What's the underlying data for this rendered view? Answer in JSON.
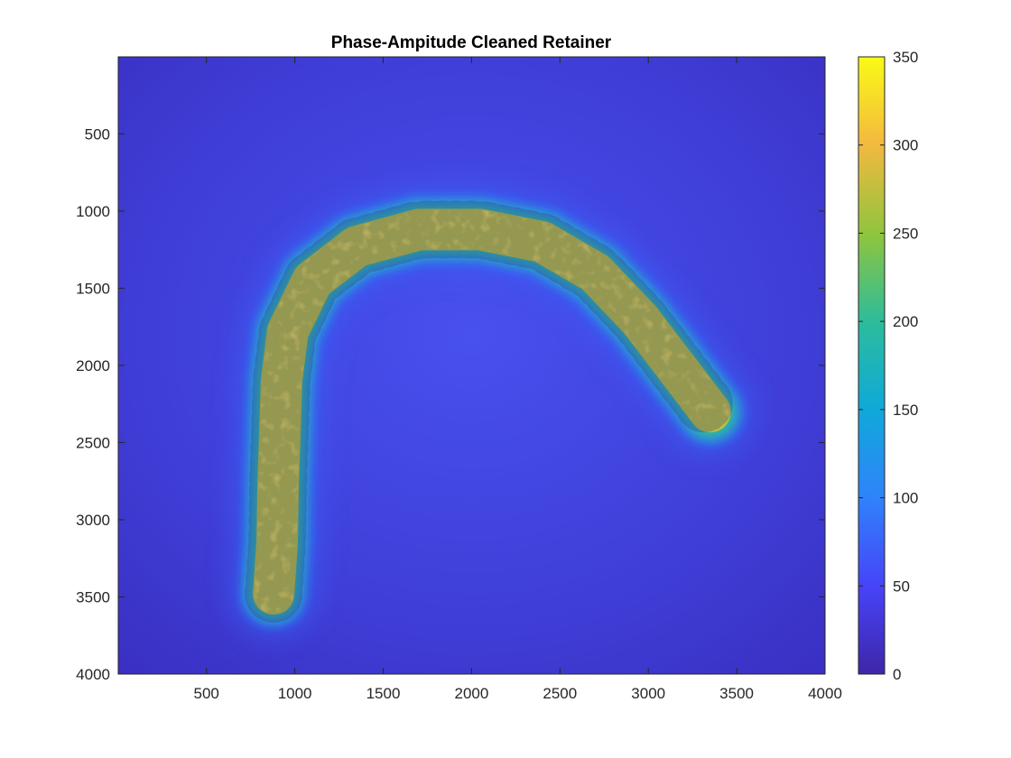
{
  "chart_data": {
    "type": "heatmap",
    "title": "Phase-Ampitude Cleaned Retainer",
    "xlabel": "",
    "ylabel": "",
    "xlim": [
      1,
      4000
    ],
    "ylim": [
      1,
      4000
    ],
    "y_reversed": true,
    "x_ticks": [
      "500",
      "1000",
      "1500",
      "2000",
      "2500",
      "3000",
      "3500",
      "4000"
    ],
    "x_tick_values": [
      500,
      1000,
      1500,
      2000,
      2500,
      3000,
      3500,
      4000
    ],
    "y_ticks": [
      "500",
      "1000",
      "1500",
      "2000",
      "2500",
      "3000",
      "3500",
      "4000"
    ],
    "y_tick_values": [
      500,
      1000,
      1500,
      2000,
      2500,
      3000,
      3500,
      4000
    ],
    "colorbar": {
      "range": [
        0,
        350
      ],
      "ticks": [
        "0",
        "50",
        "100",
        "150",
        "200",
        "250",
        "300",
        "350"
      ],
      "tick_values": [
        0,
        50,
        100,
        150,
        200,
        250,
        300,
        350
      ],
      "colormap": "parula"
    },
    "background_value": 30,
    "object_value": 270,
    "object_centerline": [
      [
        880,
        3480
      ],
      [
        900,
        3150
      ],
      [
        905,
        2800
      ],
      [
        915,
        2450
      ],
      [
        925,
        2100
      ],
      [
        960,
        1780
      ],
      [
        1100,
        1450
      ],
      [
        1350,
        1230
      ],
      [
        1700,
        1120
      ],
      [
        2050,
        1120
      ],
      [
        2400,
        1200
      ],
      [
        2700,
        1400
      ],
      [
        2950,
        1700
      ],
      [
        3150,
        2000
      ],
      [
        3350,
        2300
      ]
    ]
  }
}
